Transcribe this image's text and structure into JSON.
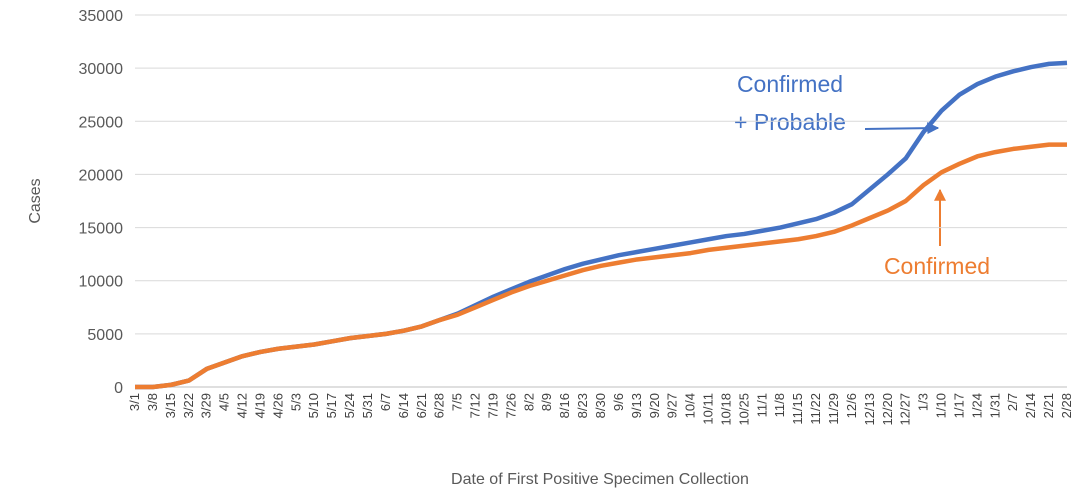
{
  "chart_data": {
    "type": "line",
    "x_label": "Date of First Positive Specimen Collection",
    "y_label": "Cases",
    "categories": [
      "3/1",
      "3/8",
      "3/15",
      "3/22",
      "3/29",
      "4/5",
      "4/12",
      "4/19",
      "4/26",
      "5/3",
      "5/10",
      "5/17",
      "5/24",
      "5/31",
      "6/7",
      "6/14",
      "6/21",
      "6/28",
      "7/5",
      "7/12",
      "7/19",
      "7/26",
      "8/2",
      "8/9",
      "8/16",
      "8/23",
      "8/30",
      "9/6",
      "9/13",
      "9/20",
      "9/27",
      "10/4",
      "10/11",
      "10/18",
      "10/25",
      "11/1",
      "11/8",
      "11/15",
      "11/22",
      "11/29",
      "12/6",
      "12/13",
      "12/20",
      "12/27",
      "1/3",
      "1/10",
      "1/17",
      "1/24",
      "1/31",
      "2/7",
      "2/14",
      "2/21",
      "2/28"
    ],
    "series": [
      {
        "name": "Confirmed + Probable",
        "color": "#4472c4",
        "values": [
          0,
          0,
          200,
          600,
          1700,
          2300,
          2900,
          3300,
          3600,
          3800,
          4000,
          4300,
          4600,
          4800,
          5000,
          5300,
          5700,
          6300,
          6900,
          7700,
          8500,
          9200,
          9900,
          10500,
          11100,
          11600,
          12000,
          12400,
          12700,
          13000,
          13300,
          13600,
          13900,
          14200,
          14400,
          14700,
          15000,
          15400,
          15800,
          16400,
          17200,
          18600,
          20000,
          21500,
          24000,
          26000,
          27500,
          28500,
          29200,
          29700,
          30100,
          30400,
          30500
        ]
      },
      {
        "name": "Confirmed",
        "color": "#ed7d31",
        "values": [
          0,
          0,
          200,
          600,
          1700,
          2300,
          2900,
          3300,
          3600,
          3800,
          4000,
          4300,
          4600,
          4800,
          5000,
          5300,
          5700,
          6300,
          6800,
          7500,
          8200,
          8900,
          9500,
          10000,
          10500,
          11000,
          11400,
          11700,
          12000,
          12200,
          12400,
          12600,
          12900,
          13100,
          13300,
          13500,
          13700,
          13900,
          14200,
          14600,
          15200,
          15900,
          16600,
          17500,
          19000,
          20200,
          21000,
          21700,
          22100,
          22400,
          22600,
          22800,
          22800
        ]
      }
    ],
    "annotations": [
      "Confirmed",
      "+ Probable",
      "Confirmed"
    ],
    "ylim": [
      0,
      35000
    ],
    "yticks": [
      0,
      5000,
      10000,
      15000,
      20000,
      25000,
      30000,
      35000
    ],
    "grid": true
  }
}
